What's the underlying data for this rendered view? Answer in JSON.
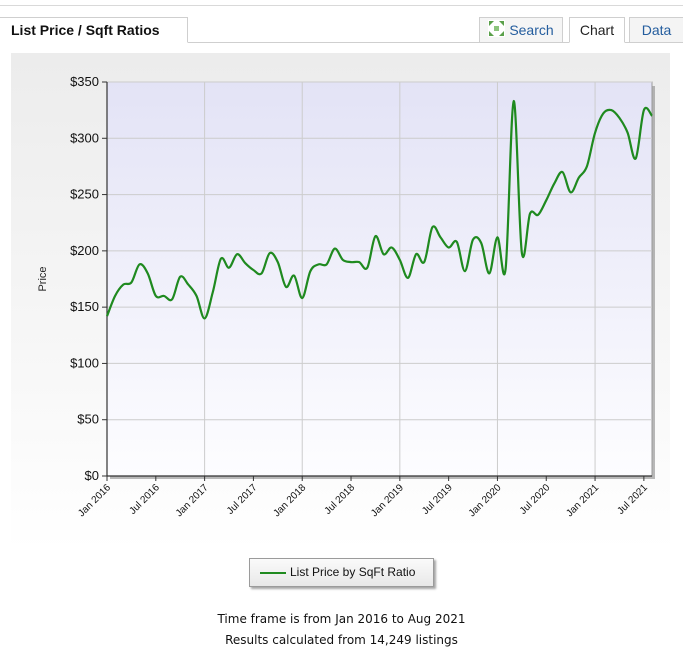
{
  "panel": {
    "title": "List Price / Sqft Ratios"
  },
  "tabs": {
    "search": "Search",
    "chart": "Chart",
    "data": "Data"
  },
  "colors": {
    "series": "#1f8a1f",
    "link": "#245d9e"
  },
  "chart_data": {
    "type": "line",
    "title": "",
    "ylabel": "Price",
    "xlabel": "",
    "ylim": [
      0,
      350
    ],
    "yticks": [
      {
        "value": 0,
        "label": "$0"
      },
      {
        "value": 50,
        "label": "$50"
      },
      {
        "value": 100,
        "label": "$100"
      },
      {
        "value": 150,
        "label": "$150"
      },
      {
        "value": 200,
        "label": "$200"
      },
      {
        "value": 250,
        "label": "$250"
      },
      {
        "value": 300,
        "label": "$300"
      },
      {
        "value": 350,
        "label": "$350"
      }
    ],
    "xlim": [
      "2016-01",
      "2021-08"
    ],
    "xticks": [
      {
        "value": "2016-01",
        "label": "Jan 2016"
      },
      {
        "value": "2016-07",
        "label": "Jul 2016"
      },
      {
        "value": "2017-01",
        "label": "Jan 2017"
      },
      {
        "value": "2017-07",
        "label": "Jul 2017"
      },
      {
        "value": "2018-01",
        "label": "Jan 2018"
      },
      {
        "value": "2018-07",
        "label": "Jul 2018"
      },
      {
        "value": "2019-01",
        "label": "Jan 2019"
      },
      {
        "value": "2019-07",
        "label": "Jul 2019"
      },
      {
        "value": "2020-01",
        "label": "Jan 2020"
      },
      {
        "value": "2020-07",
        "label": "Jul 2020"
      },
      {
        "value": "2021-01",
        "label": "Jan 2021"
      },
      {
        "value": "2021-07",
        "label": "Jul 2021"
      }
    ],
    "grid": true,
    "legend_position": "bottom",
    "series": [
      {
        "name": "List Price by SqFt Ratio",
        "x": [
          "2016-01",
          "2016-02",
          "2016-03",
          "2016-04",
          "2016-05",
          "2016-06",
          "2016-07",
          "2016-08",
          "2016-09",
          "2016-10",
          "2016-11",
          "2016-12",
          "2017-01",
          "2017-02",
          "2017-03",
          "2017-04",
          "2017-05",
          "2017-06",
          "2017-07",
          "2017-08",
          "2017-09",
          "2017-10",
          "2017-11",
          "2017-12",
          "2018-01",
          "2018-02",
          "2018-03",
          "2018-04",
          "2018-05",
          "2018-06",
          "2018-07",
          "2018-08",
          "2018-09",
          "2018-10",
          "2018-11",
          "2018-12",
          "2019-01",
          "2019-02",
          "2019-03",
          "2019-04",
          "2019-05",
          "2019-06",
          "2019-07",
          "2019-08",
          "2019-09",
          "2019-10",
          "2019-11",
          "2019-12",
          "2020-01",
          "2020-02",
          "2020-03",
          "2020-04",
          "2020-05",
          "2020-06",
          "2020-07",
          "2020-08",
          "2020-09",
          "2020-10",
          "2020-11",
          "2020-12",
          "2021-01",
          "2021-02",
          "2021-03",
          "2021-04",
          "2021-05",
          "2021-06",
          "2021-07",
          "2021-08"
        ],
        "values": [
          142,
          160,
          170,
          172,
          188,
          180,
          160,
          160,
          157,
          177,
          170,
          160,
          140,
          163,
          193,
          185,
          197,
          189,
          183,
          180,
          198,
          190,
          168,
          178,
          158,
          182,
          188,
          188,
          202,
          192,
          190,
          190,
          185,
          213,
          197,
          203,
          192,
          176,
          197,
          190,
          221,
          212,
          203,
          208,
          182,
          210,
          207,
          180,
          212,
          184,
          333,
          198,
          233,
          232,
          245,
          260,
          270,
          252,
          265,
          275,
          305,
          322,
          325,
          318,
          305,
          282,
          325,
          320
        ]
      }
    ]
  },
  "footer": {
    "timeframe": "Time frame is from Jan 2016 to Aug 2021",
    "results": "Results calculated from 14,249 listings"
  }
}
